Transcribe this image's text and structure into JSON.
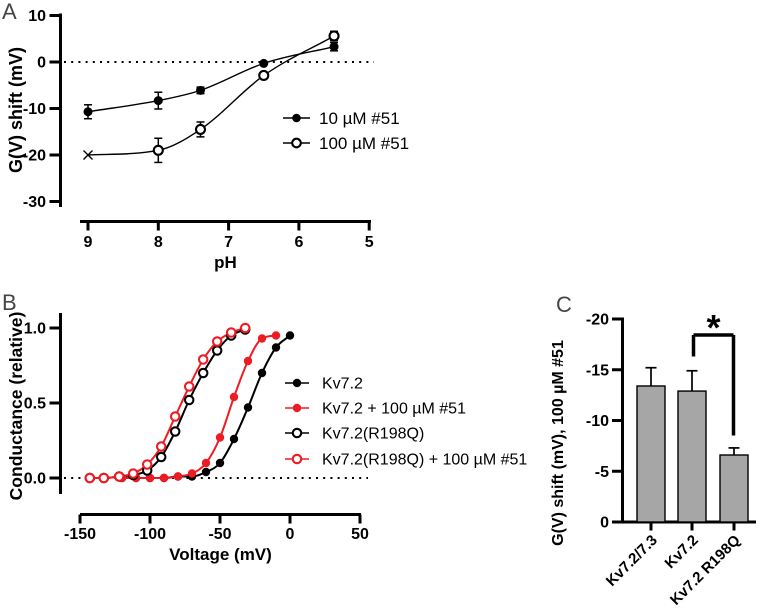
{
  "figure": {
    "panel_a_label": "A",
    "panel_b_label": "B",
    "panel_c_label": "C"
  },
  "colors": {
    "black": "#000000",
    "red": "#ed1c24",
    "bar_gray": "#a6a6a6"
  },
  "chart_data": [
    {
      "panel": "A",
      "type": "scatter",
      "xlabel": "pH",
      "ylabel": "G(V) shift (mV)",
      "x_axis_reversed": true,
      "xlim": [
        9.1,
        5.0
      ],
      "ylim": [
        -30,
        10
      ],
      "zero_reference_line": "dotted",
      "x_ticks": [
        {
          "value": 9,
          "label": "9"
        },
        {
          "value": 8,
          "label": "8"
        },
        {
          "value": 7,
          "label": "7"
        },
        {
          "value": 6,
          "label": "6"
        },
        {
          "value": 5,
          "label": "5"
        }
      ],
      "y_ticks": [
        {
          "value": 10,
          "label": "10"
        },
        {
          "value": 0,
          "label": "0"
        },
        {
          "value": -10,
          "label": "-10"
        },
        {
          "value": -20,
          "label": "-20"
        },
        {
          "value": -30,
          "label": "-30"
        }
      ],
      "legend_position": "right-middle",
      "series": [
        {
          "name": "10 µM #51",
          "color": "#000000",
          "marker": "filled-circle",
          "x": [
            9,
            8,
            7.4,
            6.5,
            5.5
          ],
          "y": [
            -10.7,
            -8.3,
            -6.1,
            -0.3,
            3.3
          ],
          "err": [
            1.5,
            1.8,
            0.7,
            0.4,
            0.9
          ]
        },
        {
          "name": "100 µM #51",
          "color": "#000000",
          "marker": "open-circle",
          "point_markers": [
            "cross",
            null,
            null,
            null,
            null
          ],
          "x": [
            9,
            8,
            7.4,
            6.5,
            5.5
          ],
          "y": [
            -20.0,
            -19.0,
            -14.5,
            -2.9,
            5.6
          ],
          "err": [
            0,
            2.6,
            1.6,
            0.5,
            1.0
          ]
        }
      ]
    },
    {
      "panel": "B",
      "type": "line",
      "xlabel": "Voltage (mV)",
      "ylabel": "Conductance (relative)",
      "xlim": [
        -165,
        55
      ],
      "ylim": [
        0,
        1.05
      ],
      "zero_reference_line": "dotted",
      "x_ticks": [
        {
          "value": -150,
          "label": "-150"
        },
        {
          "value": -100,
          "label": "-100"
        },
        {
          "value": -50,
          "label": "-50"
        },
        {
          "value": 0,
          "label": "0"
        },
        {
          "value": 50,
          "label": "50"
        }
      ],
      "y_ticks": [
        {
          "value": 1.0,
          "label": "1.0"
        },
        {
          "value": 0.5,
          "label": "0.5"
        },
        {
          "value": 0.0,
          "label": "0.0"
        }
      ],
      "legend_position": "right-middle",
      "series": [
        {
          "name": "Kv7.2",
          "color": "#000000",
          "marker": "filled-circle",
          "x": [
            -120,
            -110,
            -100,
            -90,
            -80,
            -70,
            -60,
            -50,
            -40,
            -30,
            -20,
            -10,
            0
          ],
          "y": [
            0,
            0,
            0,
            0,
            0.01,
            0.01,
            0.04,
            0.1,
            0.26,
            0.47,
            0.7,
            0.87,
            0.95
          ]
        },
        {
          "name": "Kv7.2 + 100 µM #51",
          "color": "#ed1c24",
          "marker": "filled-circle",
          "x": [
            -120,
            -110,
            -100,
            -90,
            -80,
            -70,
            -60,
            -50,
            -40,
            -30,
            -20,
            -10
          ],
          "y": [
            0,
            0,
            0,
            0,
            0.01,
            0.03,
            0.1,
            0.27,
            0.54,
            0.78,
            0.93,
            0.95
          ]
        },
        {
          "name": "Kv7.2(R198Q)",
          "color": "#000000",
          "marker": "open-circle",
          "x": [
            -143,
            -133,
            -122,
            -112,
            -102,
            -92,
            -82,
            -72,
            -62,
            -52,
            -42,
            -32
          ],
          "y": [
            0,
            0,
            0.01,
            0.02,
            0.05,
            0.14,
            0.31,
            0.52,
            0.7,
            0.85,
            0.95,
            0.99
          ]
        },
        {
          "name": "Kv7.2(R198Q) + 100 µM #51",
          "color": "#ed1c24",
          "marker": "open-circle",
          "x": [
            -143,
            -133,
            -122,
            -112,
            -102,
            -92,
            -82,
            -72,
            -62,
            -52,
            -42,
            -32
          ],
          "y": [
            0,
            0,
            0.01,
            0.03,
            0.09,
            0.21,
            0.41,
            0.61,
            0.79,
            0.91,
            0.97,
            1.0
          ]
        }
      ]
    },
    {
      "panel": "C",
      "type": "bar",
      "ylabel": "G(V) shift (mV), 100 µM #51",
      "ylim": [
        0,
        -20
      ],
      "y_ticks": [
        {
          "value": -20,
          "label": "-20"
        },
        {
          "value": -15,
          "label": "-15"
        },
        {
          "value": -10,
          "label": "-10"
        },
        {
          "value": -5,
          "label": "-5"
        },
        {
          "value": 0,
          "label": "0"
        }
      ],
      "categories": [
        "Kv7.2/7.3",
        "Kv7.2",
        "Kv7.2 R198Q"
      ],
      "values": [
        -13.4,
        -12.9,
        -6.6
      ],
      "errors": [
        1.8,
        2.0,
        0.7
      ],
      "bar_color": "#a6a6a6",
      "significance": {
        "label": "*",
        "between": [
          "Kv7.2",
          "Kv7.2 R198Q"
        ]
      }
    }
  ]
}
